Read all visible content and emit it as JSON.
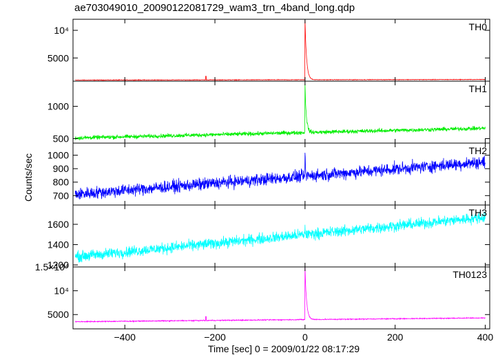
{
  "title": "ae703049010_20090122081729_wam3_trn_4band_long.qdp",
  "ylabel": "Counts/sec",
  "xlabel": "Time [sec] 0 = 2009/01/22 08:17:29",
  "xlim": [
    -515,
    410
  ],
  "xticks": [
    {
      "v": -400,
      "label": "−400"
    },
    {
      "v": -200,
      "label": "−200"
    },
    {
      "v": 0,
      "label": "0"
    },
    {
      "v": 200,
      "label": "200"
    },
    {
      "v": 400,
      "label": "400"
    }
  ],
  "chart_data": [
    {
      "type": "line",
      "name": "TH0",
      "color": "#ff0000",
      "ylim": [
        800,
        12000
      ],
      "yticks": [
        {
          "v": 5000,
          "label": "5000"
        },
        {
          "v": 10000,
          "label": "10⁴"
        }
      ],
      "x_range": [
        -510,
        400
      ],
      "base_start": 1000,
      "base_end": 1100,
      "noise": 35,
      "peak_x": 0,
      "peak_y": 11800,
      "decay": 3.5,
      "glitches": [
        {
          "x": -220,
          "y": 1700
        }
      ]
    },
    {
      "type": "line",
      "name": "TH1",
      "color": "#00ee00",
      "ylim": [
        430,
        1390
      ],
      "yticks": [
        {
          "v": 500,
          "label": "500"
        },
        {
          "v": 1000,
          "label": "1000"
        }
      ],
      "x_range": [
        -510,
        400
      ],
      "base_start": 510,
      "base_end": 660,
      "noise": 22,
      "peak_x": 0,
      "peak_y": 1330,
      "decay": 3.0,
      "glitches": []
    },
    {
      "type": "line",
      "name": "TH2",
      "color": "#0000ff",
      "ylim": [
        630,
        1090
      ],
      "yticks": [
        {
          "v": 700,
          "label": "700"
        },
        {
          "v": 800,
          "label": "800"
        },
        {
          "v": 900,
          "label": "900"
        },
        {
          "v": 1000,
          "label": "1000"
        }
      ],
      "x_range": [
        -510,
        400
      ],
      "base_start": 710,
      "base_end": 950,
      "noise": 32,
      "peak_x": 0,
      "peak_y": 1000,
      "decay": 1.0,
      "glitches": []
    },
    {
      "type": "line",
      "name": "TH3",
      "color": "#00ffff",
      "ylim": [
        1180,
        1790
      ],
      "yticks": [
        {
          "v": 1200,
          "label": "1200"
        },
        {
          "v": 1400,
          "label": "1400"
        },
        {
          "v": 1600,
          "label": "1600"
        }
      ],
      "x_range": [
        -510,
        400
      ],
      "base_start": 1280,
      "base_end": 1670,
      "noise": 38,
      "peak_x": 0,
      "peak_y": 1560,
      "decay": 1.0,
      "glitches": []
    },
    {
      "type": "line",
      "name": "TH0123",
      "color": "#ff00ff",
      "ylim": [
        2000,
        15000
      ],
      "yticks": [
        {
          "v": 5000,
          "label": "5000"
        },
        {
          "v": 10000,
          "label": "10⁴"
        },
        {
          "v": 15000,
          "label": "1.5×10⁴"
        }
      ],
      "x_range": [
        -510,
        400
      ],
      "base_start": 3500,
      "base_end": 4300,
      "noise": 70,
      "peak_x": 0,
      "peak_y": 14800,
      "decay": 3.5,
      "glitches": [
        {
          "x": -220,
          "y": 4600
        }
      ]
    }
  ]
}
